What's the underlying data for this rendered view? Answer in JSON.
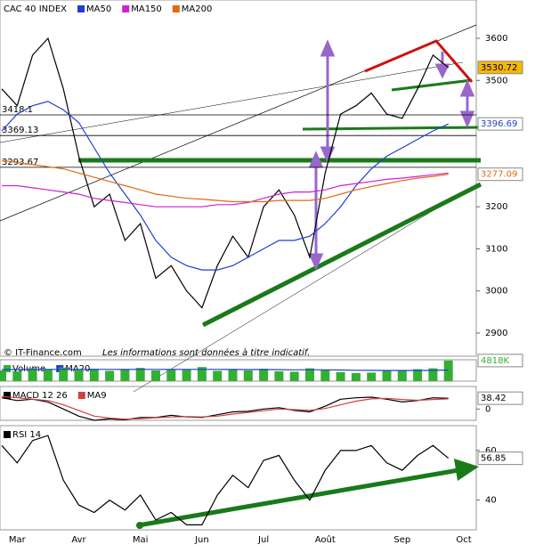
{
  "chart_data": [
    {
      "type": "line",
      "ylim": [
        2845,
        3691
      ],
      "yticks": [
        2900,
        3000,
        3100,
        3200,
        3500,
        3600
      ],
      "levels": [
        3418.1,
        3369.13,
        3293.67
      ],
      "series": [
        {
          "name": "CAC 40 INDEX",
          "color": "#000000",
          "last_box": "fill",
          "values": [
            3480,
            3440,
            3560,
            3600,
            3480,
            3320,
            3200,
            3230,
            3120,
            3160,
            3030,
            3060,
            3000,
            2960,
            3060,
            3130,
            3080,
            3200,
            3240,
            3180,
            3080,
            3280,
            3420,
            3440,
            3470,
            3420,
            3410,
            3480,
            3560,
            3530.72,
            null
          ]
        },
        {
          "name": "MA50",
          "color": "#1f3fd0",
          "last_box": "text",
          "values": [
            3380,
            3420,
            3440,
            3450,
            3430,
            3400,
            3340,
            3280,
            3230,
            3180,
            3120,
            3080,
            3060,
            3050,
            3050,
            3060,
            3080,
            3100,
            3120,
            3120,
            3130,
            3160,
            3200,
            3250,
            3290,
            3320,
            3340,
            3360,
            3380,
            3396.69,
            null
          ]
        },
        {
          "name": "MA150",
          "color": "#d020d0",
          "values": [
            3250,
            3250,
            3245,
            3240,
            3235,
            3230,
            3220,
            3215,
            3210,
            3205,
            3200,
            3200,
            3200,
            3200,
            3205,
            3205,
            3210,
            3220,
            3230,
            3235,
            3235,
            3240,
            3250,
            3255,
            3260,
            3265,
            3268,
            3272,
            3276,
            3280,
            null
          ]
        },
        {
          "name": "MA200",
          "color": "#e06a10",
          "last_box": "text",
          "values": [
            3310,
            3305,
            3300,
            3295,
            3290,
            3280,
            3270,
            3260,
            3250,
            3240,
            3230,
            3225,
            3220,
            3218,
            3215,
            3212,
            3212,
            3212,
            3215,
            3215,
            3215,
            3220,
            3230,
            3240,
            3248,
            3255,
            3262,
            3268,
            3272,
            3277.09,
            null
          ]
        }
      ],
      "source": "© IT-Finance.com",
      "disclaimer": "Les informations sont données à titre indicatif."
    },
    {
      "type": "bar",
      "ylim": [
        0,
        5000
      ],
      "last_label": "4818K",
      "series": [
        {
          "name": "Volume",
          "color": "#33b033",
          "values": [
            2500,
            2300,
            3000,
            2800,
            3200,
            2600,
            2900,
            2400,
            2700,
            3100,
            2500,
            2600,
            2800,
            3300,
            2400,
            2600,
            2500,
            2900,
            2300,
            2200,
            3000,
            2700,
            2100,
            1900,
            2000,
            2600,
            2400,
            2800,
            3000,
            4818,
            null
          ]
        },
        {
          "name": "MA20",
          "color": "#1f3fd0",
          "values": [
            2700,
            2700,
            2720,
            2740,
            2760,
            2750,
            2760,
            2740,
            2730,
            2750,
            2740,
            2730,
            2740,
            2760,
            2740,
            2720,
            2700,
            2710,
            2680,
            2650,
            2660,
            2650,
            2600,
            2550,
            2520,
            2500,
            2490,
            2500,
            2520,
            2600,
            null
          ]
        }
      ]
    },
    {
      "type": "line",
      "ylim": [
        -40,
        80
      ],
      "yticks": [
        0
      ],
      "series": [
        {
          "name": "MACD 12 26",
          "color": "#000000",
          "last_box": "text",
          "values": [
            40,
            30,
            35,
            25,
            0,
            -25,
            -40,
            -35,
            -38,
            -30,
            -30,
            -22,
            -28,
            -30,
            -20,
            -10,
            -8,
            0,
            5,
            -5,
            -10,
            10,
            35,
            40,
            42,
            35,
            25,
            30,
            40,
            38.42,
            null
          ]
        },
        {
          "name": "MA9",
          "color": "#d04040",
          "values": [
            45,
            40,
            35,
            30,
            15,
            -5,
            -25,
            -32,
            -36,
            -34,
            -31,
            -28,
            -27,
            -28,
            -25,
            -18,
            -12,
            -6,
            0,
            -2,
            -5,
            2,
            15,
            28,
            36,
            38,
            34,
            31,
            34,
            36,
            null
          ]
        }
      ]
    },
    {
      "type": "line",
      "ylim": [
        28,
        70
      ],
      "yticks": [
        40,
        60
      ],
      "categories": [
        null,
        "Mar",
        null,
        null,
        null,
        "Avr",
        null,
        null,
        null,
        "Mai",
        null,
        null,
        null,
        "Jun",
        null,
        null,
        null,
        "Jul",
        null,
        null,
        null,
        "Août",
        null,
        null,
        null,
        null,
        "Sep",
        null,
        null,
        null,
        "Oct"
      ],
      "series": [
        {
          "name": "RSI 14",
          "color": "#000000",
          "last_box": "text",
          "values": [
            62,
            55,
            64,
            66,
            48,
            38,
            35,
            40,
            36,
            42,
            32,
            35,
            30,
            30,
            42,
            50,
            45,
            56,
            58,
            48,
            40,
            52,
            60,
            60,
            62,
            55,
            52,
            58,
            62,
            56.85,
            null
          ]
        }
      ]
    }
  ]
}
